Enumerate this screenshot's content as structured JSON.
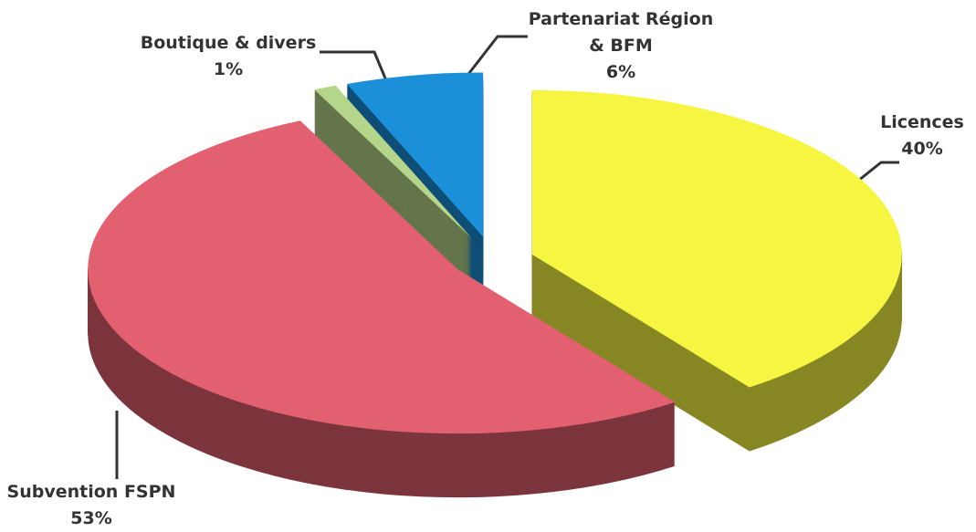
{
  "chart_data": {
    "type": "pie",
    "categories": [
      "Licences",
      "Subvention FSPN",
      "Boutique & divers",
      "Partenariat Région & BFM"
    ],
    "values": [
      40,
      53,
      1,
      6
    ],
    "value_labels": [
      "40%",
      "53%",
      "1%",
      "6%"
    ],
    "colors": [
      "#f5f542",
      "#e2606f",
      "#b5d58a",
      "#1b8fd8"
    ]
  }
}
